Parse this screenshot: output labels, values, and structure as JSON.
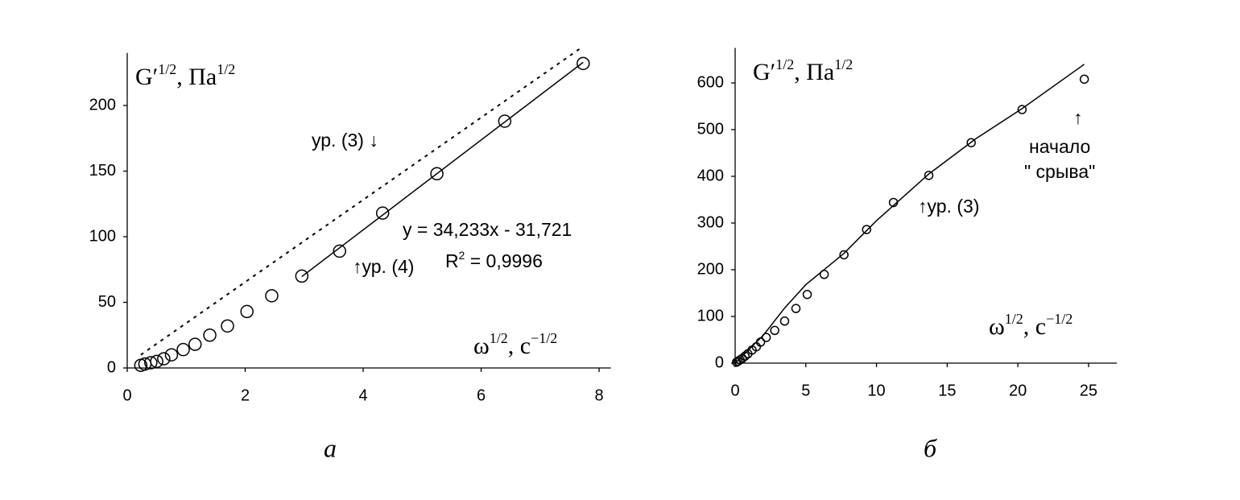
{
  "chart_data": [
    {
      "type": "scatter",
      "caption": "а",
      "y_label": [
        "G′",
        "1/2",
        ", Па",
        "1/2"
      ],
      "x_label": [
        "ω",
        "1/2",
        ", с",
        "−1/2"
      ],
      "xlim": [
        0,
        8.2
      ],
      "ylim": [
        0,
        240
      ],
      "xticks": [
        0,
        2,
        4,
        6,
        8
      ],
      "yticks": [
        0,
        50,
        100,
        150,
        200
      ],
      "color": "#000000",
      "points": {
        "x": [
          0.23,
          0.3,
          0.4,
          0.5,
          0.62,
          0.75,
          0.95,
          1.15,
          1.4,
          1.7,
          2.03,
          2.45,
          2.96,
          3.6,
          4.33,
          5.25,
          6.4,
          7.73
        ],
        "y": [
          2,
          3,
          4,
          5,
          7,
          10,
          14,
          18,
          25,
          32,
          43,
          55,
          70,
          89,
          118,
          148,
          188,
          232
        ]
      },
      "lines": [
        {
          "dashed": false,
          "x": [
            2.96,
            7.73
          ],
          "y": [
            69.6,
            232.9
          ]
        },
        {
          "dashed": true,
          "x": [
            0.23,
            7.73
          ],
          "y": [
            10,
            245
          ]
        }
      ],
      "annotations": [
        [
          "ур. (3) ↓"
        ],
        [
          "y = 34,233x - 31,721"
        ],
        [
          "R",
          "2",
          " = 0,9996"
        ],
        [
          "↑ур. (4)"
        ]
      ]
    },
    {
      "type": "scatter",
      "caption": "б",
      "y_label": [
        "G′",
        "1/2",
        ", Па",
        "1/2"
      ],
      "x_label": [
        "ω",
        "1/2",
        ", с",
        "−1/2"
      ],
      "xlim": [
        0,
        27
      ],
      "ylim": [
        0,
        675
      ],
      "xticks": [
        0,
        5,
        10,
        15,
        20,
        25
      ],
      "yticks": [
        0,
        100,
        200,
        300,
        400,
        500,
        600
      ],
      "color": "#000000",
      "points": {
        "x": [
          0.1,
          0.2,
          0.35,
          0.5,
          0.7,
          0.9,
          1.2,
          1.5,
          1.8,
          2.2,
          2.8,
          3.5,
          4.3,
          5.1,
          6.3,
          7.7,
          9.3,
          11.2,
          13.7,
          16.7,
          20.3,
          24.7
        ],
        "y": [
          2,
          4,
          7,
          10,
          15,
          20,
          28,
          35,
          45,
          55,
          70,
          90,
          117,
          147,
          190,
          232,
          286,
          344,
          402,
          472,
          543,
          608
        ]
      },
      "lines": [
        {
          "dashed": false,
          "x": [
            0,
            2,
            3.5,
            5,
            7.7,
            10,
            13.7,
            17,
            20.3,
            24.7
          ],
          "y": [
            0,
            60,
            118,
            168,
            235,
            305,
            405,
            480,
            545,
            640
          ]
        }
      ],
      "annotations": [
        [
          "↑ур. (3)"
        ],
        [
          "↑"
        ],
        [
          "начало"
        ],
        [
          "\" срыва\""
        ]
      ]
    }
  ]
}
